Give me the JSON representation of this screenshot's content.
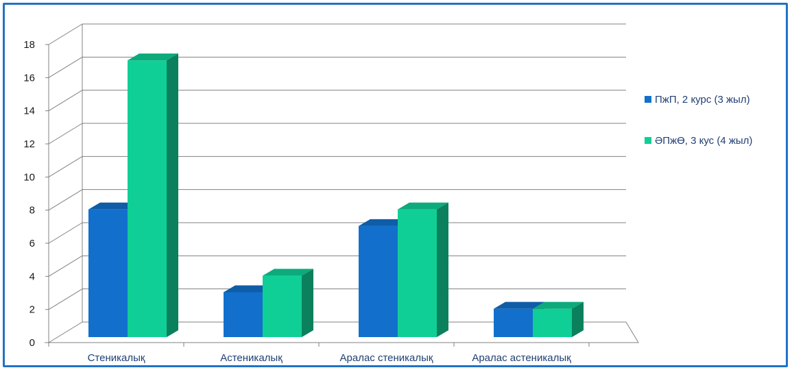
{
  "chart_data": {
    "type": "bar",
    "title": "",
    "xlabel": "",
    "ylabel": "",
    "categories": [
      "Стеникалық",
      "Астеникалық",
      "Аралас стеникалық",
      "Аралас астеникалық"
    ],
    "series": [
      {
        "name": "ПжП, 2 курс (3 жыл)",
        "values": [
          8,
          3,
          7,
          2
        ],
        "color": "#1270cc"
      },
      {
        "name": "ӘПжӨ, 3 кус (4 жыл)",
        "values": [
          17,
          4,
          8,
          2
        ],
        "color": "#10cf96"
      }
    ],
    "ylim": [
      0,
      18
    ],
    "yticks": [
      0,
      2,
      4,
      6,
      8,
      10,
      12,
      14,
      16,
      18
    ],
    "grid": true,
    "legend_position": "right",
    "three_d": true
  }
}
